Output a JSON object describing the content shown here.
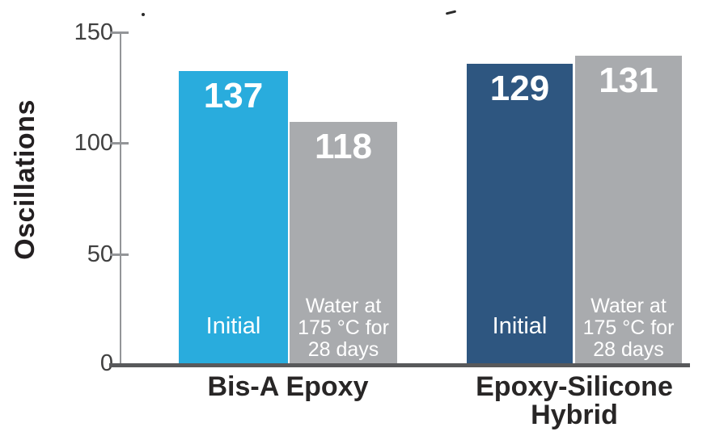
{
  "colors": {
    "cyan": "#29ACDD",
    "navy": "#2E5680",
    "gray": "#A9ABAE",
    "axis_line": "#939598",
    "baseline": "#58595B",
    "tick_label": "#404040",
    "category_label": "#282626",
    "bar_text": "#FFFFFF"
  },
  "chart_data": {
    "type": "bar",
    "title": "",
    "ylabel": "Oscillations",
    "ylim": [
      0,
      150
    ],
    "yticks": [
      0,
      50,
      100,
      150
    ],
    "ytick_labels": [
      "150",
      "100",
      "50",
      "0"
    ],
    "grid": false,
    "legend_position": "labels inside bars",
    "categories": [
      "Bis-A Epoxy",
      "Epoxy-Silicone\nHybrid"
    ],
    "series": [
      {
        "name": "Initial",
        "values": [
          137,
          129
        ]
      },
      {
        "name": "Water at 175 °C for 28 days",
        "values": [
          118,
          131
        ]
      }
    ],
    "groups": [
      {
        "category": "Bis-A Epoxy",
        "bars": [
          {
            "series": "Initial",
            "value": 137,
            "label_in_bar": "Initial",
            "color_key": "cyan",
            "drawn_height_units": 132.2
          },
          {
            "series": "Water at 175 °C for 28 days",
            "value": 118,
            "label_in_bar": "Water at\n175 °C for\n28 days",
            "color_key": "gray",
            "drawn_height_units": 109.2
          }
        ]
      },
      {
        "category": "Epoxy-Silicone\nHybrid",
        "bars": [
          {
            "series": "Initial",
            "value": 129,
            "label_in_bar": "Initial",
            "color_key": "navy",
            "drawn_height_units": 135.4
          },
          {
            "series": "Water at 175 °C for 28 days",
            "value": 131,
            "label_in_bar": "Water at\n175 °C for\n28 days",
            "color_key": "gray",
            "drawn_height_units": 139.1
          }
        ]
      }
    ]
  }
}
